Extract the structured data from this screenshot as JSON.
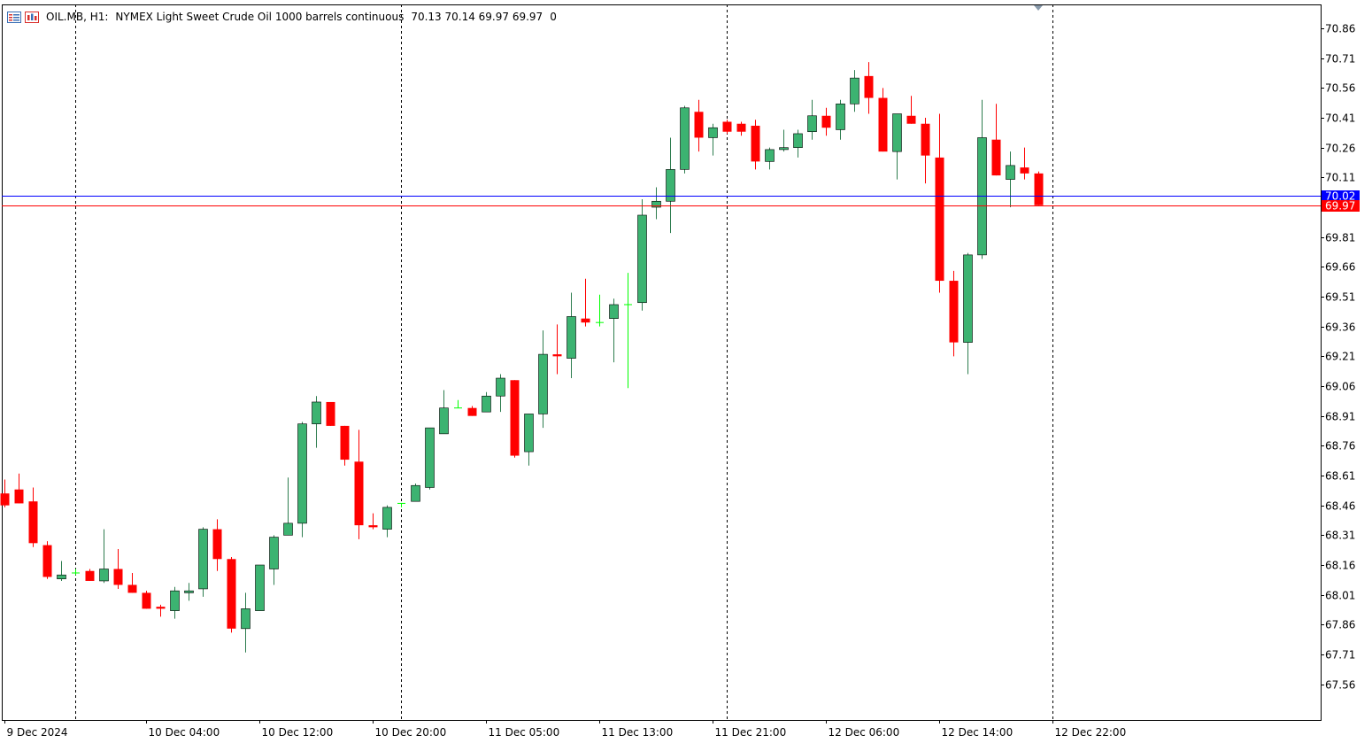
{
  "header": {
    "symbol": "OIL.MB, H1:",
    "description": "NYMEX Light Sweet Crude Oil 1000 barrels continuous",
    "ohlc": "70.13 70.14 69.97 69.97",
    "volume": "0",
    "icons": [
      "chart-list-icon",
      "chart-window-icon"
    ]
  },
  "colors": {
    "bull": "#3cb371",
    "bear": "#ff0000",
    "doji": "#00ff00",
    "grid": "#000000",
    "ask_line": "#0000ff",
    "bid_line": "#ff0000"
  },
  "chart_data": {
    "type": "candlestick",
    "timeframe": "H1",
    "y_ticks": [
      "70.86",
      "70.71",
      "70.56",
      "70.41",
      "70.26",
      "70.11",
      "69.81",
      "69.66",
      "69.51",
      "69.36",
      "69.21",
      "69.06",
      "68.91",
      "68.76",
      "68.61",
      "68.46",
      "68.31",
      "68.16",
      "68.01",
      "67.86",
      "67.71",
      "67.56"
    ],
    "x_ticks": [
      {
        "label": "9 Dec 2024",
        "index": 0
      },
      {
        "label": "10 Dec 04:00",
        "index": 10
      },
      {
        "label": "10 Dec 12:00",
        "index": 18
      },
      {
        "label": "10 Dec 20:00",
        "index": 26
      },
      {
        "label": "11 Dec 05:00",
        "index": 34
      },
      {
        "label": "11 Dec 13:00",
        "index": 42
      },
      {
        "label": "11 Dec 21:00",
        "index": 50
      },
      {
        "label": "12 Dec 06:00",
        "index": 58
      },
      {
        "label": "12 Dec 14:00",
        "index": 66
      },
      {
        "label": "12 Dec 22:00",
        "index": 74
      }
    ],
    "day_separators": [
      5,
      28,
      51,
      74
    ],
    "ask": 70.02,
    "bid": 69.97,
    "ask_label": "70.02",
    "bid_label": "69.97",
    "candles": [
      [
        68.52,
        68.59,
        68.45,
        68.46
      ],
      [
        68.54,
        68.62,
        68.47,
        68.47
      ],
      [
        68.48,
        68.55,
        68.25,
        68.27
      ],
      [
        68.26,
        68.28,
        68.09,
        68.1
      ],
      [
        68.09,
        68.18,
        68.08,
        68.11
      ],
      [
        68.12,
        68.14,
        68.11,
        68.12
      ],
      [
        68.13,
        68.14,
        68.08,
        68.08
      ],
      [
        68.08,
        68.34,
        68.07,
        68.14
      ],
      [
        68.14,
        68.24,
        68.04,
        68.06
      ],
      [
        68.06,
        68.12,
        68.02,
        68.02
      ],
      [
        68.02,
        68.03,
        67.94,
        67.94
      ],
      [
        67.95,
        67.96,
        67.9,
        67.94
      ],
      [
        67.93,
        68.05,
        67.89,
        68.03
      ],
      [
        68.02,
        68.07,
        67.98,
        68.03
      ],
      [
        68.04,
        68.35,
        68.0,
        68.34
      ],
      [
        68.34,
        68.39,
        68.13,
        68.19
      ],
      [
        68.19,
        68.2,
        67.82,
        67.84
      ],
      [
        67.84,
        68.02,
        67.72,
        67.94
      ],
      [
        67.93,
        68.16,
        67.93,
        68.16
      ],
      [
        68.14,
        68.31,
        68.06,
        68.3
      ],
      [
        68.31,
        68.6,
        68.31,
        68.37
      ],
      [
        68.37,
        68.88,
        68.3,
        68.87
      ],
      [
        68.87,
        69.01,
        68.75,
        68.98
      ],
      [
        68.98,
        68.98,
        68.86,
        68.86
      ],
      [
        68.86,
        68.86,
        68.66,
        68.69
      ],
      [
        68.68,
        68.84,
        68.29,
        68.36
      ],
      [
        68.36,
        68.42,
        68.34,
        68.35
      ],
      [
        68.34,
        68.46,
        68.3,
        68.45
      ],
      [
        68.47,
        68.47,
        68.45,
        68.47
      ],
      [
        68.48,
        68.57,
        68.48,
        68.56
      ],
      [
        68.55,
        68.85,
        68.54,
        68.85
      ],
      [
        68.82,
        69.04,
        68.82,
        68.95
      ],
      [
        68.95,
        68.99,
        68.95,
        68.95
      ],
      [
        68.95,
        68.96,
        68.91,
        68.91
      ],
      [
        68.93,
        69.03,
        68.93,
        69.01
      ],
      [
        69.01,
        69.12,
        68.93,
        69.1
      ],
      [
        69.09,
        69.09,
        68.7,
        68.71
      ],
      [
        68.73,
        68.92,
        68.66,
        68.92
      ],
      [
        68.92,
        69.34,
        68.85,
        69.22
      ],
      [
        69.22,
        69.37,
        69.12,
        69.21
      ],
      [
        69.2,
        69.53,
        69.1,
        69.41
      ],
      [
        69.4,
        69.6,
        69.36,
        69.38
      ],
      [
        69.38,
        69.52,
        69.36,
        69.38
      ],
      [
        69.4,
        69.5,
        69.18,
        69.47
      ],
      [
        69.47,
        69.63,
        69.05,
        69.47
      ],
      [
        69.48,
        70.0,
        69.44,
        69.92
      ],
      [
        69.96,
        70.06,
        69.9,
        69.99
      ],
      [
        69.99,
        70.31,
        69.83,
        70.15
      ],
      [
        70.15,
        70.47,
        70.13,
        70.46
      ],
      [
        70.44,
        70.5,
        70.24,
        70.31
      ],
      [
        70.31,
        70.38,
        70.22,
        70.36
      ],
      [
        70.39,
        70.4,
        70.33,
        70.34
      ],
      [
        70.38,
        70.39,
        70.32,
        70.34
      ],
      [
        70.37,
        70.4,
        70.15,
        70.19
      ],
      [
        70.19,
        70.26,
        70.15,
        70.25
      ],
      [
        70.25,
        70.35,
        70.24,
        70.26
      ],
      [
        70.26,
        70.35,
        70.21,
        70.33
      ],
      [
        70.34,
        70.5,
        70.3,
        70.42
      ],
      [
        70.42,
        70.46,
        70.32,
        70.36
      ],
      [
        70.35,
        70.5,
        70.3,
        70.48
      ],
      [
        70.48,
        70.65,
        70.44,
        70.61
      ],
      [
        70.62,
        70.69,
        70.43,
        70.51
      ],
      [
        70.51,
        70.56,
        70.24,
        70.24
      ],
      [
        70.24,
        70.43,
        70.1,
        70.43
      ],
      [
        70.42,
        70.52,
        70.38,
        70.38
      ],
      [
        70.38,
        70.41,
        70.08,
        70.22
      ],
      [
        70.21,
        70.43,
        69.53,
        69.59
      ],
      [
        69.59,
        69.64,
        69.21,
        69.28
      ],
      [
        69.28,
        69.73,
        69.12,
        69.72
      ],
      [
        69.72,
        70.5,
        69.7,
        70.31
      ],
      [
        70.3,
        70.48,
        70.12,
        70.12
      ],
      [
        70.1,
        70.24,
        69.96,
        70.17
      ],
      [
        70.16,
        70.26,
        70.1,
        70.13
      ],
      [
        70.13,
        70.14,
        69.97,
        69.97
      ]
    ]
  }
}
